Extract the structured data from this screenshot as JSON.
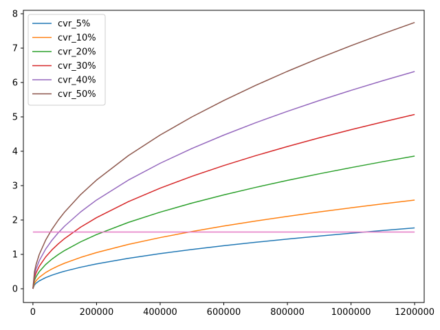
{
  "chart_data": {
    "type": "line",
    "title": "",
    "xlabel": "",
    "ylabel": "",
    "xlim": [
      -30000,
      1230000
    ],
    "ylim": [
      -0.4,
      8.1
    ],
    "x_ticks": [
      0,
      200000,
      400000,
      600000,
      800000,
      1000000,
      1200000
    ],
    "x_tick_labels": [
      "0",
      "200000",
      "400000",
      "600000",
      "800000",
      "1000000",
      "1200000"
    ],
    "y_ticks": [
      0,
      1,
      2,
      3,
      4,
      5,
      6,
      7,
      8
    ],
    "y_tick_labels": [
      "0",
      "1",
      "2",
      "3",
      "4",
      "5",
      "6",
      "7",
      "8"
    ],
    "grid": false,
    "legend": {
      "placement": "top-left"
    },
    "x": [
      0,
      5000,
      10000,
      20000,
      40000,
      60000,
      80000,
      100000,
      150000,
      200000,
      300000,
      400000,
      500000,
      600000,
      700000,
      800000,
      900000,
      1000000,
      1100000,
      1200000
    ],
    "series": [
      {
        "name": "cvr_5%",
        "color": "#1f77b4",
        "values": [
          0,
          0.114,
          0.162,
          0.229,
          0.323,
          0.396,
          0.457,
          0.511,
          0.626,
          0.723,
          0.885,
          1.022,
          1.143,
          1.252,
          1.352,
          1.445,
          1.533,
          1.616,
          1.695,
          1.77
        ]
      },
      {
        "name": "cvr_10%",
        "color": "#ff7f0e",
        "values": [
          0,
          0.166,
          0.235,
          0.333,
          0.471,
          0.577,
          0.666,
          0.745,
          0.912,
          1.053,
          1.29,
          1.489,
          1.665,
          1.824,
          1.97,
          2.106,
          2.234,
          2.355,
          2.47,
          2.58
        ]
      },
      {
        "name": "cvr_20%",
        "color": "#2ca02c",
        "values": [
          0,
          0.249,
          0.352,
          0.498,
          0.705,
          0.863,
          0.997,
          1.114,
          1.365,
          1.576,
          1.93,
          2.229,
          2.492,
          2.73,
          2.949,
          3.152,
          3.344,
          3.524,
          3.696,
          3.86
        ]
      },
      {
        "name": "cvr_30%",
        "color": "#d62728",
        "values": [
          0,
          0.327,
          0.463,
          0.654,
          0.925,
          1.133,
          1.309,
          1.463,
          1.792,
          2.069,
          2.534,
          2.926,
          3.272,
          3.584,
          3.871,
          4.138,
          4.39,
          4.627,
          4.853,
          5.07
        ]
      },
      {
        "name": "cvr_40%",
        "color": "#9467bd",
        "values": [
          0,
          0.408,
          0.577,
          0.816,
          1.154,
          1.413,
          1.632,
          1.825,
          2.235,
          2.581,
          3.161,
          3.65,
          4.081,
          4.47,
          4.829,
          5.162,
          5.475,
          5.771,
          6.053,
          6.32
        ]
      },
      {
        "name": "cvr_50%",
        "color": "#8c564b",
        "values": [
          0,
          0.5,
          0.707,
          1.0,
          1.414,
          1.732,
          2.0,
          2.236,
          2.739,
          3.162,
          3.873,
          4.472,
          5.0,
          5.477,
          5.916,
          6.325,
          6.708,
          7.071,
          7.416,
          7.746
        ]
      }
    ],
    "reference_line": {
      "y": 1.65,
      "color": "#e377c2"
    }
  }
}
